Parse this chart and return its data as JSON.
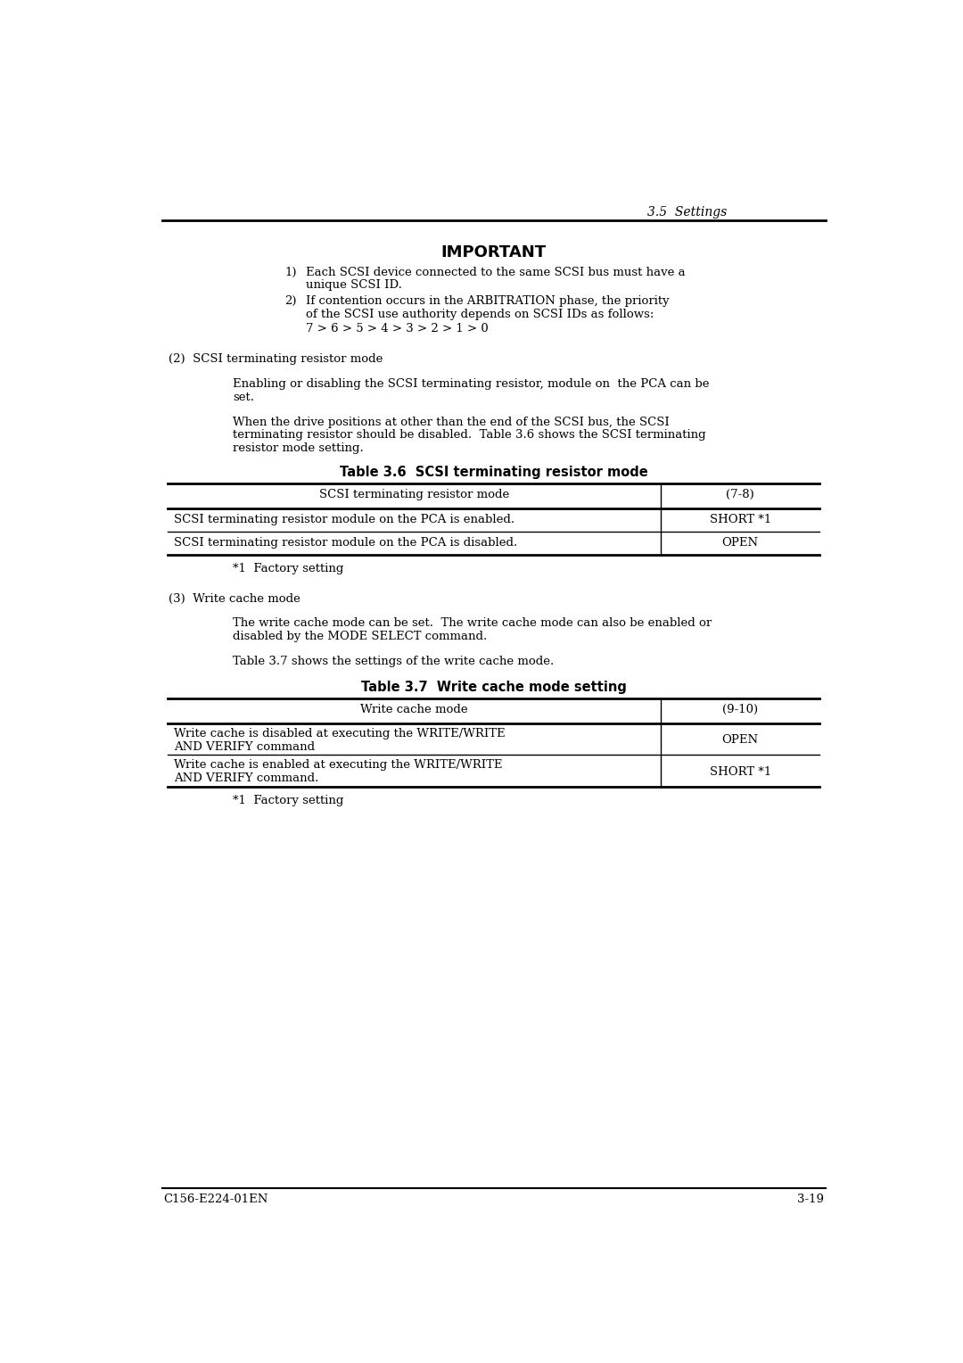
{
  "header_right": "3.5  Settings",
  "footer_left": "C156-E224-01EN",
  "footer_right": "3-19",
  "important_title": "IMPORTANT",
  "section2_title": "(2)  SCSI terminating resistor mode",
  "section2_para1a": "Enabling or disabling the SCSI terminating resistor, module on  the PCA can be",
  "section2_para1b": "set.",
  "section2_para2a": "When the drive positions at other than the end of the SCSI bus, the SCSI",
  "section2_para2b": "terminating resistor should be disabled.  Table 3.6 shows the SCSI terminating",
  "section2_para2c": "resistor mode setting.",
  "table1_title": "Table 3.6  SCSI terminating resistor mode",
  "table1_header": [
    "SCSI terminating resistor mode",
    "(7-8)"
  ],
  "table1_rows": [
    [
      "SCSI terminating resistor module on the PCA is enabled.",
      "SHORT *1"
    ],
    [
      "SCSI terminating resistor module on the PCA is disabled.",
      "OPEN"
    ]
  ],
  "table1_footnote": "*1  Factory setting",
  "section3_title": "(3)  Write cache mode",
  "section3_para1a": "The write cache mode can be set.  The write cache mode can also be enabled or",
  "section3_para1b": "disabled by the MODE SELECT command.",
  "section3_para2": "Table 3.7 shows the settings of the write cache mode.",
  "table2_title": "Table 3.7  Write cache mode setting",
  "table2_header": [
    "Write cache mode",
    "(9-10)"
  ],
  "table2_rows": [
    [
      "Write cache is disabled at executing the WRITE/WRITE\nAND VERIFY command",
      "OPEN"
    ],
    [
      "Write cache is enabled at executing the WRITE/WRITE\nAND VERIFY command.",
      "SHORT *1"
    ]
  ],
  "table2_footnote": "*1  Factory setting",
  "bg_color": "#ffffff",
  "text_color": "#000000"
}
